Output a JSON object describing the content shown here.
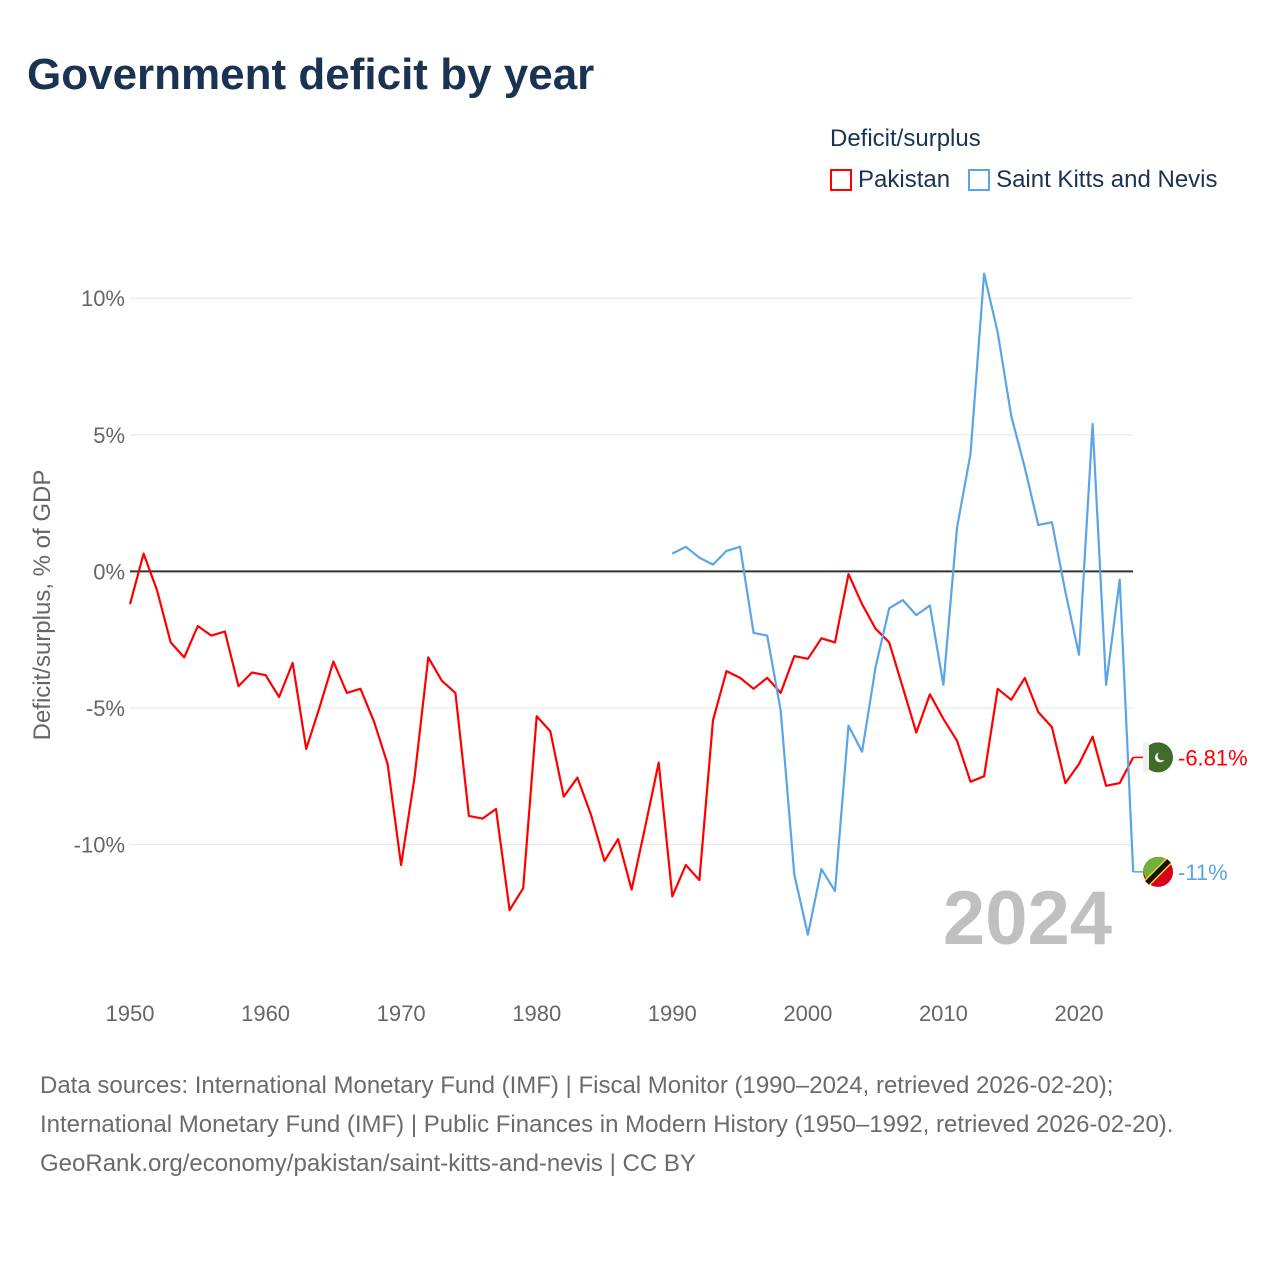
{
  "title": "Government deficit by year",
  "chart_data": {
    "type": "line",
    "title": "Government deficit by year",
    "xlabel": "",
    "ylabel": "Deficit/surplus, % of GDP",
    "legend_title": "Deficit/surplus",
    "legend_position": "top-right",
    "xlim": [
      1950,
      2024
    ],
    "ylim": [
      -14.3,
      11.4
    ],
    "x_ticks": [
      1950,
      1960,
      1970,
      1980,
      1990,
      2000,
      2010,
      2020
    ],
    "x_tick_labels": [
      "1950",
      "1960",
      "1970",
      "1980",
      "1990",
      "2000",
      "2010",
      "2020"
    ],
    "y_ticks": [
      10,
      5,
      0,
      -5,
      -10
    ],
    "y_tick_labels": [
      "10%",
      "5%",
      "0%",
      "-5%",
      "-10%"
    ],
    "grid": true,
    "year_label": "2024",
    "series": [
      {
        "name": "Pakistan",
        "color": "#ff0000",
        "start_year": 1950,
        "end_label": "-6.81%",
        "values": [
          -1.2,
          0.65,
          -0.7,
          -2.6,
          -3.15,
          -2.0,
          -2.35,
          -2.2,
          -4.2,
          -3.7,
          -3.8,
          -4.6,
          -3.35,
          -6.5,
          -4.95,
          -3.3,
          -4.45,
          -4.3,
          -5.5,
          -7.05,
          -10.75,
          -7.5,
          -3.15,
          -4.0,
          -4.45,
          -8.95,
          -9.05,
          -8.7,
          -12.4,
          -11.6,
          -5.3,
          -5.85,
          -8.25,
          -7.55,
          -8.9,
          -10.6,
          -9.8,
          -11.65,
          -9.35,
          -7.0,
          -11.9,
          -10.75,
          -11.3,
          -5.45,
          -3.65,
          -3.9,
          -4.3,
          -3.9,
          -4.45,
          -3.1,
          -3.2,
          -2.45,
          -2.6,
          -0.1,
          -1.2,
          -2.1,
          -2.6,
          -4.25,
          -5.9,
          -4.5,
          -5.4,
          -6.2,
          -7.7,
          -7.5,
          -4.3,
          -4.7,
          -3.9,
          -5.15,
          -5.7,
          -7.75,
          -7.05,
          -6.05,
          -7.85,
          -7.75,
          -6.81
        ]
      },
      {
        "name": "Saint Kitts and Nevis",
        "color": "#5ba4e6",
        "start_year": 1990,
        "end_label": "-11%",
        "values": [
          0.65,
          0.9,
          0.5,
          0.25,
          0.75,
          0.9,
          -2.25,
          -2.35,
          -5.1,
          -11.1,
          -13.3,
          -10.9,
          -11.7,
          -5.65,
          -6.6,
          -3.5,
          -1.35,
          -1.05,
          -1.6,
          -1.25,
          -4.15,
          1.6,
          4.3,
          10.9,
          8.75,
          5.7,
          3.8,
          1.7,
          1.8,
          -0.75,
          -3.05,
          5.4,
          -4.15,
          -0.3,
          -11.0
        ]
      }
    ]
  },
  "footer": {
    "sources_line1": "Data sources: International Monetary Fund (IMF) | Fiscal Monitor (1990–2024, retrieved 2026-02-20);",
    "sources_line2": "International Monetary Fund (IMF) | Public Finances in Modern History (1950–1992, retrieved 2026-02-20).",
    "link": "GeoRank.org/economy/pakistan/saint-kitts-and-nevis | CC BY"
  }
}
